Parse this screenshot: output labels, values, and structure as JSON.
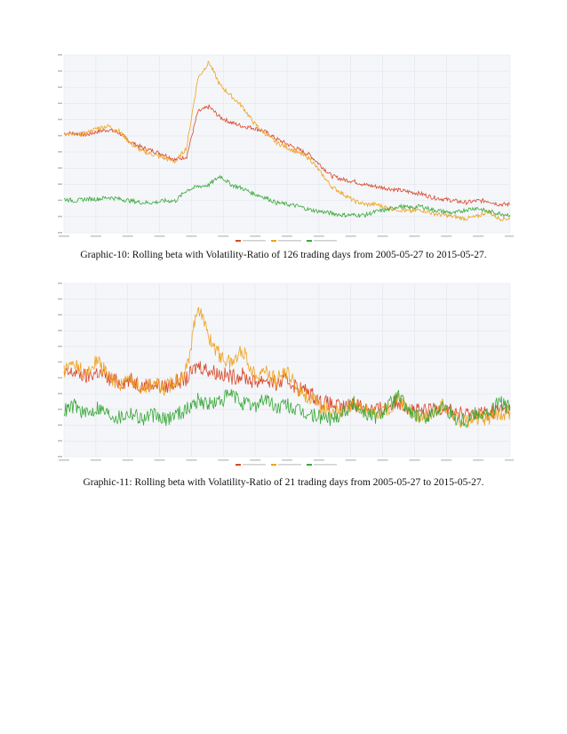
{
  "captions": {
    "graphic10": "Graphic-10: Rolling beta with Volatility-Ratio of 126 trading days from 2005-05-27 to 2015-05-27.",
    "graphic11": "Graphic-11: Rolling beta with Volatility-Ratio of 21 trading days from 2005-05-27 to 2015-05-27."
  },
  "colors": {
    "red": "#d9482b",
    "orange": "#f0a21e",
    "green": "#3aa83a",
    "plot_bg": "#f4f6f9",
    "grid": "#e2e6ec"
  },
  "chart_data": [
    {
      "type": "line",
      "title": "",
      "xlim": [
        0,
        10
      ],
      "ylim": [
        0,
        10
      ],
      "grid": true,
      "legend_position": "bottom",
      "series": [
        {
          "color": "#d9482b",
          "x": [
            0,
            0.25,
            0.5,
            0.75,
            1,
            1.25,
            1.5,
            1.75,
            2,
            2.25,
            2.5,
            2.75,
            3,
            3.25,
            3.5,
            3.75,
            4,
            4.25,
            4.5,
            4.75,
            5,
            5.25,
            5.5,
            5.75,
            6,
            6.25,
            6.5,
            6.75,
            7,
            7.25,
            7.5,
            7.75,
            8,
            8.25,
            8.5,
            8.75,
            9,
            9.25,
            9.5,
            9.75,
            10
          ],
          "values": [
            5.6,
            5.6,
            5.5,
            5.7,
            5.8,
            5.6,
            5.1,
            4.8,
            4.6,
            4.4,
            4.1,
            4.3,
            6.8,
            7.1,
            6.5,
            6.2,
            6.0,
            5.9,
            5.7,
            5.3,
            5.0,
            4.7,
            4.4,
            3.8,
            3.2,
            3.0,
            2.9,
            2.7,
            2.6,
            2.5,
            2.4,
            2.3,
            2.2,
            2.0,
            1.9,
            1.8,
            1.7,
            1.8,
            1.8,
            1.6,
            1.6
          ]
        },
        {
          "color": "#f0a21e",
          "x": [
            0,
            0.25,
            0.5,
            0.75,
            1,
            1.25,
            1.5,
            1.75,
            2,
            2.25,
            2.5,
            2.75,
            3,
            3.25,
            3.5,
            3.75,
            4,
            4.25,
            4.5,
            4.75,
            5,
            5.25,
            5.5,
            5.75,
            6,
            6.25,
            6.5,
            6.75,
            7,
            7.25,
            7.5,
            7.75,
            8,
            8.25,
            8.5,
            8.75,
            9,
            9.25,
            9.5,
            9.75,
            10
          ],
          "values": [
            5.6,
            5.5,
            5.6,
            5.9,
            6.0,
            5.7,
            5.0,
            4.6,
            4.4,
            4.2,
            4.0,
            4.8,
            8.7,
            9.6,
            8.3,
            7.7,
            7.1,
            6.2,
            5.6,
            5.1,
            4.8,
            4.5,
            4.2,
            3.4,
            2.6,
            2.2,
            1.8,
            1.6,
            1.6,
            1.4,
            1.3,
            1.2,
            1.3,
            1.1,
            1.0,
            0.9,
            0.8,
            0.9,
            1.2,
            0.8,
            0.8
          ]
        },
        {
          "color": "#3aa83a",
          "x": [
            0,
            0.25,
            0.5,
            0.75,
            1,
            1.25,
            1.5,
            1.75,
            2,
            2.25,
            2.5,
            2.75,
            3,
            3.25,
            3.5,
            3.75,
            4,
            4.25,
            4.5,
            4.75,
            5,
            5.25,
            5.5,
            5.75,
            6,
            6.25,
            6.5,
            6.75,
            7,
            7.25,
            7.5,
            7.75,
            8,
            8.25,
            8.5,
            8.75,
            9,
            9.25,
            9.5,
            9.75,
            10
          ],
          "values": [
            1.9,
            1.8,
            1.9,
            1.9,
            2.0,
            1.9,
            1.8,
            1.7,
            1.7,
            1.8,
            1.8,
            2.4,
            2.6,
            2.7,
            3.2,
            2.7,
            2.5,
            2.2,
            2.0,
            1.7,
            1.6,
            1.5,
            1.3,
            1.2,
            1.1,
            1.0,
            1.0,
            1.0,
            1.2,
            1.3,
            1.5,
            1.4,
            1.5,
            1.3,
            1.2,
            1.1,
            1.3,
            1.4,
            1.2,
            1.1,
            1.0
          ]
        }
      ]
    },
    {
      "type": "line",
      "title": "",
      "xlim": [
        0,
        10
      ],
      "ylim": [
        0,
        10
      ],
      "grid": true,
      "legend_position": "bottom",
      "series": [
        {
          "color": "#d9482b",
          "x": [
            0,
            0.25,
            0.5,
            0.75,
            1,
            1.25,
            1.5,
            1.75,
            2,
            2.25,
            2.5,
            2.75,
            3,
            3.25,
            3.5,
            3.75,
            4,
            4.25,
            4.5,
            4.75,
            5,
            5.25,
            5.5,
            5.75,
            6,
            6.25,
            6.5,
            6.75,
            7,
            7.25,
            7.5,
            7.75,
            8,
            8.25,
            8.5,
            8.75,
            9,
            9.25,
            9.5,
            9.75,
            10
          ],
          "values": [
            4.7,
            4.9,
            4.6,
            4.9,
            4.5,
            4.3,
            4.4,
            4.1,
            4.2,
            4.0,
            4.3,
            4.5,
            5.3,
            5.0,
            4.8,
            4.6,
            4.7,
            4.3,
            4.5,
            4.2,
            4.4,
            4.0,
            3.7,
            3.2,
            3.0,
            2.8,
            3.1,
            2.9,
            2.7,
            2.9,
            3.2,
            2.8,
            2.6,
            2.7,
            2.9,
            2.6,
            2.4,
            2.6,
            2.5,
            2.7,
            2.8
          ]
        },
        {
          "color": "#f0a21e",
          "x": [
            0,
            0.25,
            0.5,
            0.75,
            1,
            1.25,
            1.5,
            1.75,
            2,
            2.25,
            2.5,
            2.75,
            3,
            3.25,
            3.5,
            3.75,
            4,
            4.25,
            4.5,
            4.75,
            5,
            5.25,
            5.5,
            5.75,
            6,
            6.25,
            6.5,
            6.75,
            7,
            7.25,
            7.5,
            7.75,
            8,
            8.25,
            8.5,
            8.75,
            9,
            9.25,
            9.5,
            9.75,
            10
          ],
          "values": [
            5.0,
            5.4,
            4.7,
            5.6,
            4.6,
            4.2,
            4.5,
            4.0,
            4.3,
            3.9,
            4.4,
            5.0,
            8.8,
            6.9,
            5.8,
            5.4,
            6.2,
            4.8,
            5.0,
            4.4,
            4.9,
            3.9,
            3.4,
            2.9,
            2.6,
            2.5,
            3.0,
            2.7,
            2.4,
            2.8,
            3.4,
            2.6,
            2.2,
            2.4,
            3.0,
            2.3,
            2.0,
            2.3,
            2.2,
            2.5,
            2.6
          ]
        },
        {
          "color": "#3aa83a",
          "x": [
            0,
            0.25,
            0.5,
            0.75,
            1,
            1.25,
            1.5,
            1.75,
            2,
            2.25,
            2.5,
            2.75,
            3,
            3.25,
            3.5,
            3.75,
            4,
            4.25,
            4.5,
            4.75,
            5,
            5.25,
            5.5,
            5.75,
            6,
            6.25,
            6.5,
            6.75,
            7,
            7.25,
            7.5,
            7.75,
            8,
            8.25,
            8.5,
            8.75,
            9,
            9.25,
            9.5,
            9.75,
            10
          ],
          "values": [
            2.7,
            3.0,
            2.4,
            2.9,
            2.5,
            2.3,
            2.6,
            2.2,
            2.4,
            2.1,
            2.5,
            2.7,
            3.3,
            3.0,
            3.2,
            3.6,
            3.1,
            2.9,
            3.4,
            2.8,
            3.0,
            2.6,
            2.4,
            2.3,
            2.2,
            2.6,
            3.1,
            2.5,
            2.3,
            2.9,
            3.5,
            2.6,
            2.2,
            2.5,
            3.0,
            2.3,
            2.1,
            2.6,
            2.4,
            3.2,
            2.8
          ]
        }
      ]
    }
  ]
}
